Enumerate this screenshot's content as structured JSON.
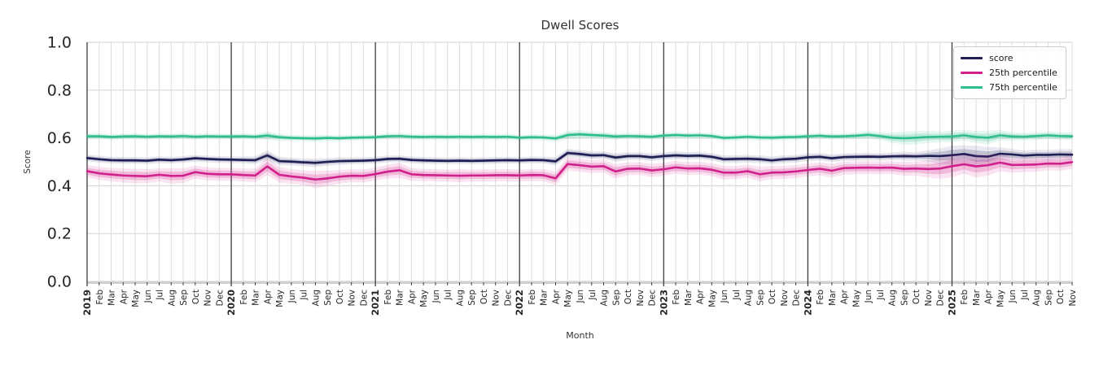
{
  "title": "Dwell Scores",
  "legend": {
    "items": [
      {
        "label": "score",
        "color": "#1e1e55"
      },
      {
        "label": "25th percentile",
        "color": "#d0208c"
      },
      {
        "label": "75th percentile",
        "color": "#2ebd8f"
      }
    ]
  },
  "chart_data": {
    "type": "line",
    "title": "Dwell Scores",
    "xlabel": "Month",
    "ylabel": "Score",
    "ylim": [
      0,
      1
    ],
    "yticks": [
      "0.0",
      "0.2",
      "0.4",
      "0.6",
      "0.8",
      "1.0"
    ],
    "grid": true,
    "legend_position": "upper right",
    "x_labels": [
      "2019",
      "Feb",
      "Mar",
      "Apr",
      "May",
      "Jun",
      "Jul",
      "Aug",
      "Sep",
      "Oct",
      "Nov",
      "Dec",
      "2020",
      "Feb",
      "Mar",
      "Apr",
      "May",
      "Jun",
      "Jul",
      "Aug",
      "Sep",
      "Oct",
      "Nov",
      "Dec",
      "2021",
      "Feb",
      "Mar",
      "Apr",
      "May",
      "Jun",
      "Jul",
      "Aug",
      "Sep",
      "Oct",
      "Nov",
      "Dec",
      "2022",
      "Feb",
      "Mar",
      "Apr",
      "May",
      "Jun",
      "Jul",
      "Aug",
      "Sep",
      "Oct",
      "Nov",
      "Dec",
      "2023",
      "Feb",
      "Mar",
      "Apr",
      "May",
      "Jun",
      "Jul",
      "Aug",
      "Sep",
      "Oct",
      "Nov",
      "Dec",
      "2024",
      "Feb",
      "Mar",
      "Apr",
      "May",
      "Jun",
      "Jul",
      "Aug",
      "Sep",
      "Oct",
      "Nov",
      "Dec",
      "2025",
      "Feb",
      "Mar",
      "Apr",
      "May",
      "Jun",
      "Jul",
      "Aug",
      "Sep",
      "Oct",
      "Nov"
    ],
    "series": [
      {
        "name": "score",
        "color": "#1e1e55",
        "band_color_inner": "rgba(40,40,100,0.20)",
        "band_color_outer": "rgba(40,40,100,0.10)",
        "values": [
          0.516,
          0.511,
          0.507,
          0.506,
          0.506,
          0.505,
          0.509,
          0.507,
          0.51,
          0.515,
          0.512,
          0.51,
          0.509,
          0.508,
          0.507,
          0.527,
          0.503,
          0.501,
          0.498,
          0.496,
          0.5,
          0.503,
          0.504,
          0.505,
          0.507,
          0.512,
          0.513,
          0.508,
          0.506,
          0.505,
          0.504,
          0.505,
          0.504,
          0.505,
          0.506,
          0.507,
          0.506,
          0.508,
          0.507,
          0.502,
          0.537,
          0.533,
          0.527,
          0.528,
          0.518,
          0.524,
          0.524,
          0.519,
          0.524,
          0.527,
          0.525,
          0.526,
          0.521,
          0.511,
          0.512,
          0.513,
          0.511,
          0.506,
          0.511,
          0.513,
          0.519,
          0.521,
          0.515,
          0.52,
          0.521,
          0.522,
          0.521,
          0.523,
          0.524,
          0.523,
          0.525,
          0.524,
          0.528,
          0.533,
          0.524,
          0.522,
          0.534,
          0.531,
          0.526,
          0.529,
          0.529,
          0.531,
          0.53
        ],
        "band": [
          0.008,
          0.008,
          0.008,
          0.008,
          0.008,
          0.008,
          0.008,
          0.008,
          0.008,
          0.008,
          0.008,
          0.008,
          0.008,
          0.008,
          0.009,
          0.012,
          0.01,
          0.009,
          0.009,
          0.01,
          0.009,
          0.009,
          0.008,
          0.008,
          0.008,
          0.008,
          0.008,
          0.008,
          0.008,
          0.008,
          0.008,
          0.008,
          0.008,
          0.008,
          0.008,
          0.008,
          0.008,
          0.008,
          0.008,
          0.01,
          0.01,
          0.009,
          0.009,
          0.009,
          0.01,
          0.009,
          0.009,
          0.009,
          0.009,
          0.009,
          0.009,
          0.009,
          0.009,
          0.009,
          0.009,
          0.009,
          0.009,
          0.009,
          0.009,
          0.009,
          0.009,
          0.009,
          0.009,
          0.009,
          0.009,
          0.009,
          0.009,
          0.009,
          0.01,
          0.01,
          0.013,
          0.018,
          0.022,
          0.02,
          0.024,
          0.022,
          0.015,
          0.013,
          0.012,
          0.012,
          0.012,
          0.012,
          0.013
        ]
      },
      {
        "name": "25th percentile",
        "color": "#d0208c",
        "band_color_inner": "rgba(214,32,142,0.22)",
        "band_color_outer": "rgba(214,32,142,0.12)",
        "values": [
          0.461,
          0.452,
          0.447,
          0.443,
          0.441,
          0.44,
          0.446,
          0.441,
          0.442,
          0.457,
          0.45,
          0.448,
          0.448,
          0.445,
          0.443,
          0.481,
          0.446,
          0.439,
          0.434,
          0.426,
          0.431,
          0.438,
          0.442,
          0.441,
          0.449,
          0.459,
          0.465,
          0.448,
          0.445,
          0.444,
          0.443,
          0.442,
          0.443,
          0.443,
          0.444,
          0.444,
          0.443,
          0.445,
          0.444,
          0.431,
          0.491,
          0.486,
          0.48,
          0.482,
          0.46,
          0.471,
          0.472,
          0.464,
          0.469,
          0.477,
          0.472,
          0.473,
          0.467,
          0.455,
          0.455,
          0.461,
          0.448,
          0.455,
          0.456,
          0.46,
          0.466,
          0.471,
          0.463,
          0.474,
          0.475,
          0.476,
          0.475,
          0.476,
          0.471,
          0.472,
          0.47,
          0.472,
          0.482,
          0.49,
          0.481,
          0.486,
          0.497,
          0.487,
          0.488,
          0.489,
          0.493,
          0.492,
          0.499
        ],
        "band": [
          0.014,
          0.015,
          0.016,
          0.016,
          0.017,
          0.016,
          0.015,
          0.018,
          0.017,
          0.015,
          0.015,
          0.015,
          0.015,
          0.015,
          0.016,
          0.02,
          0.018,
          0.017,
          0.017,
          0.02,
          0.018,
          0.016,
          0.015,
          0.015,
          0.015,
          0.016,
          0.018,
          0.015,
          0.014,
          0.014,
          0.014,
          0.015,
          0.014,
          0.014,
          0.014,
          0.014,
          0.014,
          0.014,
          0.014,
          0.016,
          0.016,
          0.015,
          0.015,
          0.015,
          0.017,
          0.015,
          0.015,
          0.016,
          0.015,
          0.015,
          0.015,
          0.015,
          0.015,
          0.016,
          0.015,
          0.015,
          0.017,
          0.015,
          0.015,
          0.015,
          0.015,
          0.015,
          0.016,
          0.015,
          0.015,
          0.015,
          0.015,
          0.015,
          0.016,
          0.016,
          0.02,
          0.024,
          0.026,
          0.022,
          0.026,
          0.024,
          0.02,
          0.018,
          0.017,
          0.017,
          0.016,
          0.016,
          0.016
        ]
      },
      {
        "name": "75th percentile",
        "color": "#2ebd8f",
        "band_color_inner": "rgba(46,189,143,0.22)",
        "band_color_outer": "rgba(46,189,143,0.12)",
        "values": [
          0.607,
          0.607,
          0.604,
          0.606,
          0.607,
          0.605,
          0.607,
          0.606,
          0.608,
          0.605,
          0.607,
          0.606,
          0.606,
          0.607,
          0.605,
          0.61,
          0.603,
          0.6,
          0.599,
          0.598,
          0.6,
          0.599,
          0.601,
          0.602,
          0.603,
          0.607,
          0.608,
          0.605,
          0.604,
          0.605,
          0.604,
          0.605,
          0.604,
          0.605,
          0.604,
          0.605,
          0.601,
          0.603,
          0.602,
          0.598,
          0.612,
          0.615,
          0.612,
          0.61,
          0.606,
          0.608,
          0.607,
          0.605,
          0.61,
          0.612,
          0.61,
          0.611,
          0.608,
          0.6,
          0.602,
          0.605,
          0.602,
          0.601,
          0.603,
          0.604,
          0.607,
          0.609,
          0.606,
          0.607,
          0.609,
          0.613,
          0.608,
          0.601,
          0.599,
          0.601,
          0.604,
          0.605,
          0.606,
          0.611,
          0.604,
          0.601,
          0.611,
          0.606,
          0.605,
          0.608,
          0.611,
          0.608,
          0.607
        ],
        "band": [
          0.007,
          0.007,
          0.007,
          0.007,
          0.007,
          0.007,
          0.007,
          0.007,
          0.007,
          0.007,
          0.007,
          0.007,
          0.007,
          0.007,
          0.007,
          0.01,
          0.008,
          0.007,
          0.007,
          0.008,
          0.007,
          0.007,
          0.007,
          0.007,
          0.007,
          0.007,
          0.007,
          0.007,
          0.007,
          0.007,
          0.007,
          0.007,
          0.007,
          0.007,
          0.007,
          0.007,
          0.007,
          0.007,
          0.007,
          0.008,
          0.01,
          0.01,
          0.008,
          0.008,
          0.008,
          0.007,
          0.007,
          0.007,
          0.007,
          0.007,
          0.007,
          0.007,
          0.007,
          0.007,
          0.007,
          0.007,
          0.007,
          0.007,
          0.007,
          0.007,
          0.007,
          0.007,
          0.007,
          0.007,
          0.008,
          0.009,
          0.009,
          0.012,
          0.015,
          0.016,
          0.014,
          0.012,
          0.014,
          0.012,
          0.014,
          0.016,
          0.012,
          0.01,
          0.009,
          0.009,
          0.009,
          0.009,
          0.009
        ]
      }
    ],
    "style": {
      "month_gridline_color": "#dcdcdc",
      "year_gridline_color": "#3d3d3d",
      "h_gridline_color": "#d9d9d9",
      "baseline_color": "#cfcfcf",
      "tick_color": "#444444",
      "tick_label_color": "#262626"
    }
  }
}
